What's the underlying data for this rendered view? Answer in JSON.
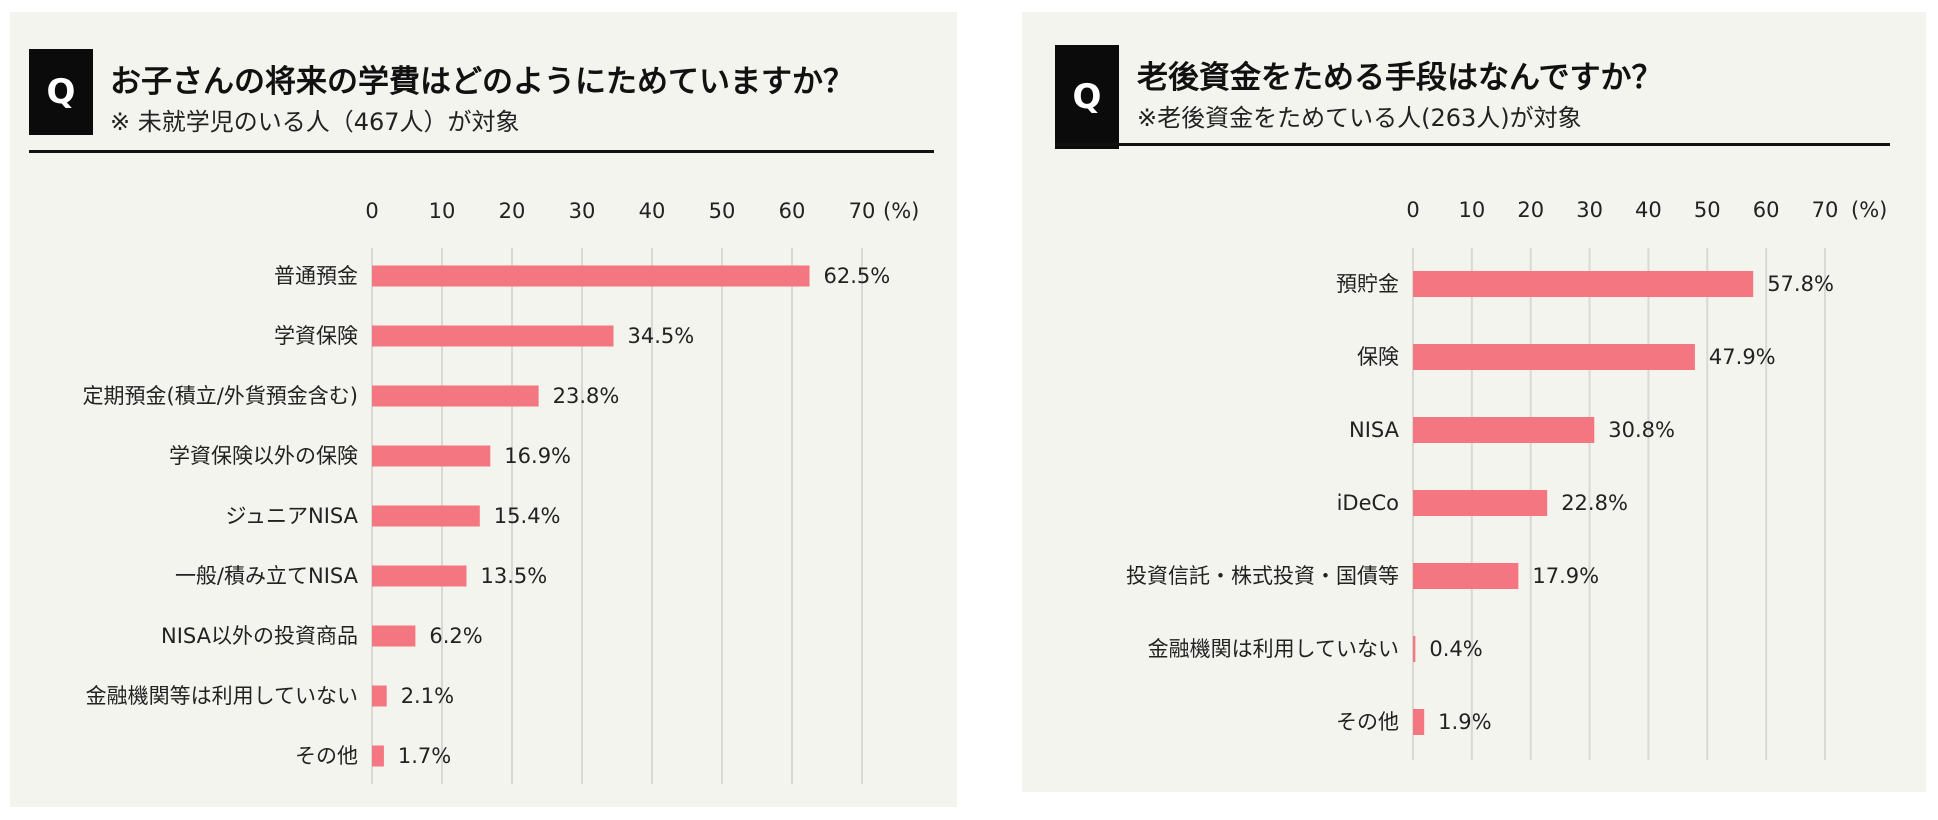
{
  "colors": {
    "bar": "#f47680",
    "grid": "#d8d8d4",
    "panel": "#f4f4ef",
    "q_box": "#0b0b0b"
  },
  "panels": [
    {
      "q_label": "Q",
      "title": "お子さんの将来の学費はどのようにためていますか？",
      "subtitle": "※ 未就学児のいる人（467人）が対象"
    },
    {
      "q_label": "Q",
      "title": "老後資金をためる手段はなんですか？",
      "subtitle": "※老後資金をためている人(263人)が対象"
    }
  ],
  "chart_data": [
    {
      "type": "bar",
      "orientation": "horizontal",
      "title": "お子さんの将来の学費はどのようにためていますか？",
      "subtitle": "※ 未就学児のいる人（467人）が対象",
      "unit_label": "(%)",
      "xlim": [
        0,
        70
      ],
      "ticks": [
        0,
        10,
        20,
        30,
        40,
        50,
        60,
        70
      ],
      "grid": true,
      "categories": [
        "普通預金",
        "学資保険",
        "定期預金(積立/外貨預金含む)",
        "学資保険以外の保険",
        "ジュニアNISA",
        "一般/積み立てNISA",
        "NISA以外の投資商品",
        "金融機関等は利用していない",
        "その他"
      ],
      "values": [
        62.5,
        34.5,
        23.8,
        16.9,
        15.4,
        13.5,
        6.2,
        2.1,
        1.7
      ],
      "value_labels": [
        "62.5%",
        "34.5%",
        "23.8%",
        "16.9%",
        "15.4%",
        "13.5%",
        "6.2%",
        "2.1%",
        "1.7%"
      ]
    },
    {
      "type": "bar",
      "orientation": "horizontal",
      "title": "老後資金をためる手段はなんですか？",
      "subtitle": "※老後資金をためている人(263人)が対象",
      "unit_label": "(%)",
      "xlim": [
        0,
        70
      ],
      "ticks": [
        0,
        10,
        20,
        30,
        40,
        50,
        60,
        70
      ],
      "grid": true,
      "categories": [
        "預貯金",
        "保険",
        "NISA",
        "iDeCo",
        "投資信託・株式投資・国債等",
        "金融機関は利用していない",
        "その他"
      ],
      "values": [
        57.8,
        47.9,
        30.8,
        22.8,
        17.9,
        0.4,
        1.9
      ],
      "value_labels": [
        "57.8%",
        "47.9%",
        "30.8%",
        "22.8%",
        "17.9%",
        "0.4%",
        "1.9%"
      ]
    }
  ]
}
